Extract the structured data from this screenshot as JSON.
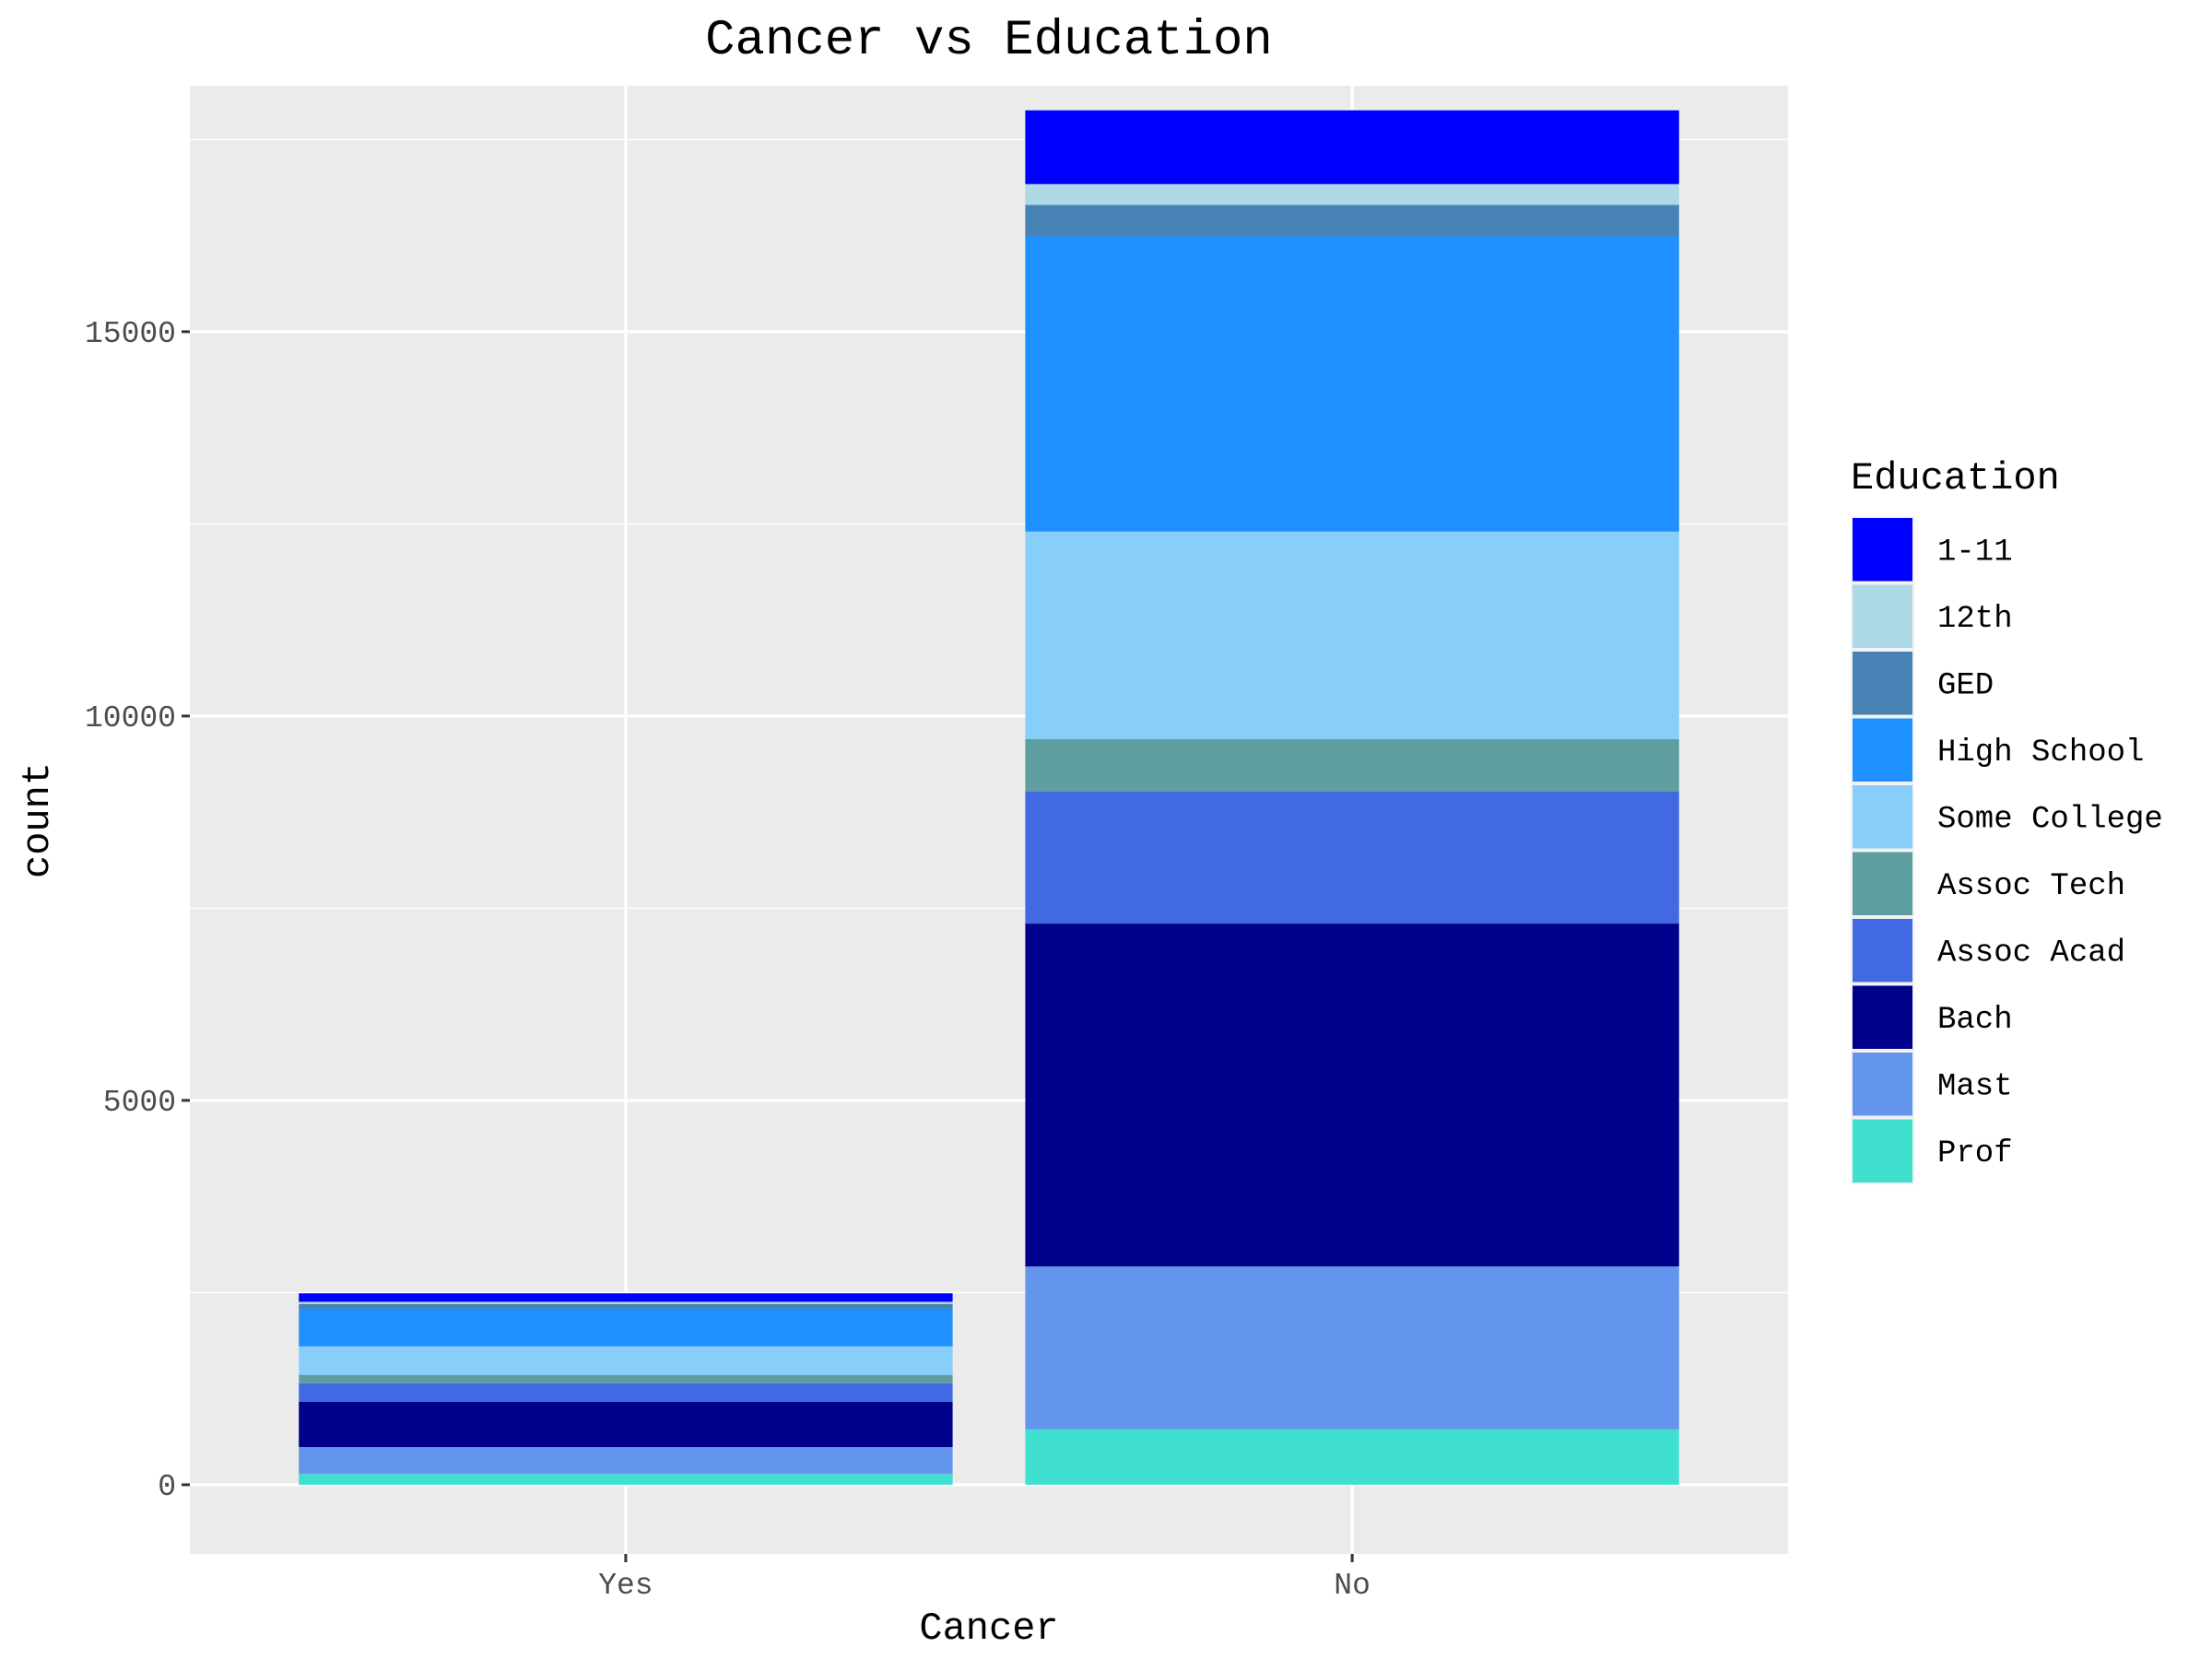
{
  "chart_data": {
    "type": "bar",
    "stacked": true,
    "title": "Cancer vs Education",
    "xlabel": "Cancer",
    "ylabel": "count",
    "categories": [
      "Yes",
      "No"
    ],
    "ylim": [
      -900,
      18200
    ],
    "yticks": [
      0,
      5000,
      10000,
      15000
    ],
    "ytick_labels": [
      "0",
      "5000",
      "10000",
      "15000"
    ],
    "grid": true,
    "panel_background": "#ebebeb",
    "legend": {
      "title": "Education",
      "placement": "right"
    },
    "series": [
      {
        "name": "Prof",
        "color": "#40e0d0",
        "values": [
          140,
          720
        ]
      },
      {
        "name": "Mast",
        "color": "#6495ed",
        "values": [
          350,
          2120
        ]
      },
      {
        "name": "Bach",
        "color": "#00008b",
        "values": [
          590,
          4460
        ]
      },
      {
        "name": "Assoc Acad",
        "color": "#4169e1",
        "values": [
          240,
          1720
        ]
      },
      {
        "name": "Assoc Tech",
        "color": "#5f9ea0",
        "values": [
          110,
          680
        ]
      },
      {
        "name": "Some College",
        "color": "#87cefa",
        "values": [
          370,
          2700
        ]
      },
      {
        "name": "High School",
        "color": "#1e90ff",
        "values": [
          490,
          3840
        ]
      },
      {
        "name": "GED",
        "color": "#4682b4",
        "values": [
          60,
          410
        ]
      },
      {
        "name": "12th",
        "color": "#add8e6",
        "values": [
          30,
          270
        ]
      },
      {
        "name": "1-11",
        "color": "#0000ff",
        "values": [
          110,
          960
        ]
      }
    ],
    "legend_order": [
      "1-11",
      "12th",
      "GED",
      "High School",
      "Some College",
      "Assoc Tech",
      "Assoc Acad",
      "Bach",
      "Mast",
      "Prof"
    ]
  }
}
